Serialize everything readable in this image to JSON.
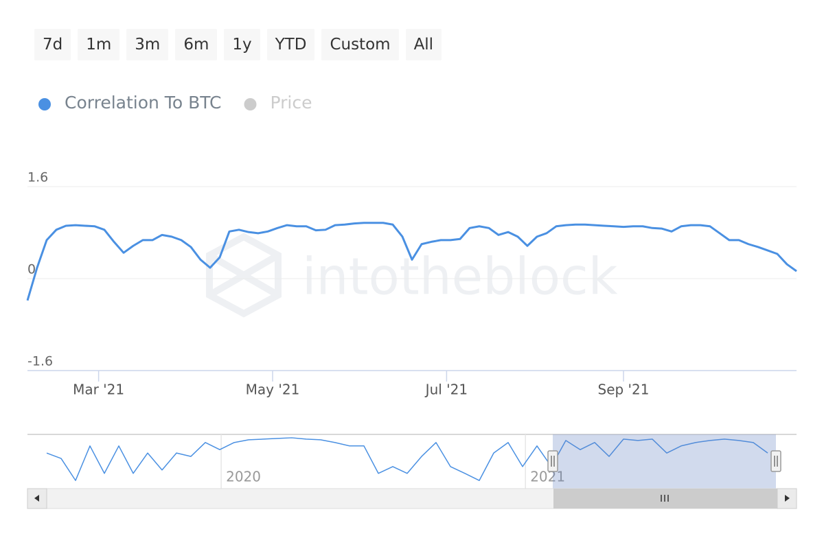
{
  "range_buttons": [
    "7d",
    "1m",
    "3m",
    "6m",
    "1y",
    "YTD",
    "Custom",
    "All"
  ],
  "chart_data": [
    {
      "type": "line",
      "watermark": "intotheblock",
      "legend": "top-left",
      "series": [
        {
          "name": "Correlation To BTC",
          "color": "#4a90e2",
          "values": [
            -0.38,
            0.19,
            0.67,
            0.85,
            0.92,
            0.93,
            0.92,
            0.91,
            0.85,
            0.64,
            0.45,
            0.57,
            0.67,
            0.67,
            0.76,
            0.73,
            0.67,
            0.55,
            0.33,
            0.19,
            0.37,
            0.82,
            0.85,
            0.81,
            0.79,
            0.82,
            0.88,
            0.93,
            0.91,
            0.91,
            0.84,
            0.85,
            0.93,
            0.94,
            0.96,
            0.97,
            0.97,
            0.97,
            0.94,
            0.73,
            0.33,
            0.6,
            0.64,
            0.67,
            0.67,
            0.69,
            0.88,
            0.91,
            0.88,
            0.76,
            0.81,
            0.73,
            0.57,
            0.73,
            0.79,
            0.91,
            0.93,
            0.94,
            0.94,
            0.93,
            0.92,
            0.91,
            0.9,
            0.91,
            0.91,
            0.88,
            0.87,
            0.82,
            0.91,
            0.93,
            0.93,
            0.91,
            0.79,
            0.67,
            0.67,
            0.6,
            0.55,
            0.49,
            0.43,
            0.25,
            0.13
          ]
        },
        {
          "name": "Price",
          "color": "#cccccc",
          "visible": false
        }
      ],
      "xlim": [
        0,
        80
      ],
      "xticks": [
        {
          "value": 7.4,
          "label": "Mar '21"
        },
        {
          "value": 25.5,
          "label": "May '21"
        },
        {
          "value": 43.6,
          "label": "Jul '21"
        },
        {
          "value": 62,
          "label": "Sep '21"
        }
      ],
      "ylim": [
        -1.6,
        1.6
      ],
      "yticks": [
        1.6,
        0,
        -1.6
      ],
      "grid": true
    },
    {
      "type": "line",
      "series": [
        {
          "color": "#4a90e2",
          "values": [
            0.45,
            0.29,
            -0.36,
            0.66,
            -0.15,
            0.66,
            -0.15,
            0.45,
            -0.05,
            0.45,
            0.35,
            0.76,
            0.55,
            0.76,
            0.84,
            0.86,
            0.88,
            0.9,
            0.86,
            0.84,
            0.76,
            0.66,
            0.66,
            -0.15,
            0.05,
            -0.15,
            0.35,
            0.76,
            0.05,
            -0.15,
            -0.36,
            0.45,
            0.76,
            0.05,
            0.66,
            0.05,
            0.82,
            0.55,
            0.76,
            0.35,
            0.86,
            0.82,
            0.86,
            0.45,
            0.66,
            0.76,
            0.82,
            0.86,
            0.82,
            0.76,
            0.45
          ]
        }
      ],
      "xlim": [
        0,
        50
      ],
      "xticks": [
        {
          "value": 12.1,
          "label": "2020"
        },
        {
          "value": 33.2,
          "label": "2021"
        }
      ],
      "ylim": [
        -0.6,
        1.0
      ]
    }
  ]
}
